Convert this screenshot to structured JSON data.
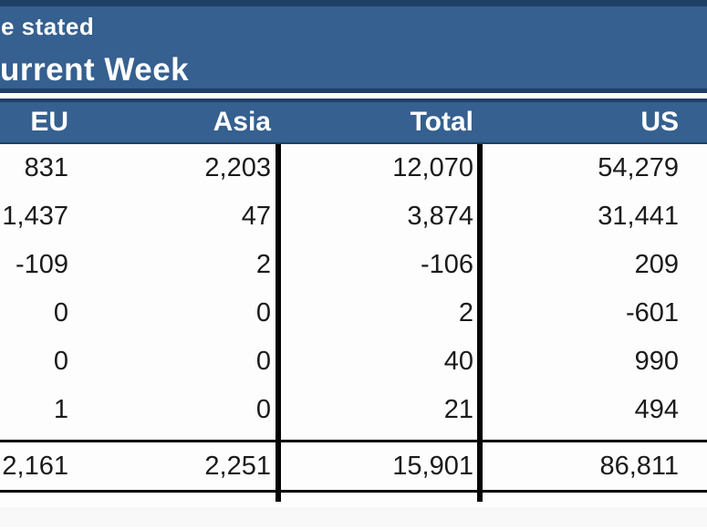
{
  "banner": {
    "line1": "e stated",
    "line2": "urrent Week"
  },
  "table": {
    "columns": [
      "EU",
      "Asia",
      "Total",
      "US"
    ],
    "rows": [
      [
        "831",
        "2,203",
        "12,070",
        "54,279"
      ],
      [
        "1,437",
        "47",
        "3,874",
        "31,441"
      ],
      [
        "-109",
        "2",
        "-106",
        "209"
      ],
      [
        "0",
        "0",
        "2",
        "-601"
      ],
      [
        "0",
        "0",
        "40",
        "990"
      ],
      [
        "1",
        "0",
        "21",
        "494"
      ]
    ],
    "totals": [
      "2,161",
      "2,251",
      "15,901",
      "86,811"
    ]
  },
  "chart_data": {
    "type": "table",
    "title": "Current Week",
    "columns": [
      "EU",
      "Asia",
      "Total",
      "US"
    ],
    "rows": [
      [
        831,
        2203,
        12070,
        54279
      ],
      [
        1437,
        47,
        3874,
        31441
      ],
      [
        -109,
        2,
        -106,
        209
      ],
      [
        0,
        0,
        2,
        -601
      ],
      [
        0,
        0,
        40,
        990
      ],
      [
        1,
        0,
        21,
        494
      ]
    ],
    "totals_row": [
      2161,
      2251,
      15901,
      86811
    ]
  },
  "colors": {
    "banner_blue": "#35608F",
    "border_navy": "#1F4066",
    "grid_black": "#050505",
    "text_white": "#ffffff",
    "text_black": "#1b1b1b"
  }
}
